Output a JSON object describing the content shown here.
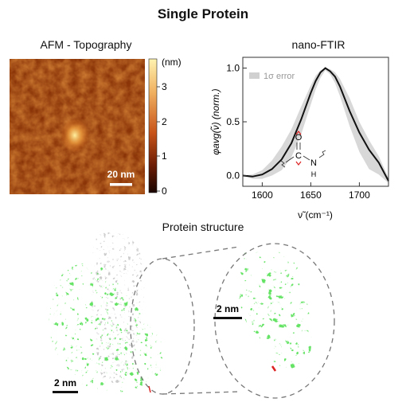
{
  "title": "Single Protein",
  "afm": {
    "title": "AFM - Topography",
    "scalebar": "20 nm",
    "colorbar_unit": "(nm)",
    "colorbar_ticks": [
      "3",
      "2",
      "1",
      "0"
    ]
  },
  "ftir": {
    "title": "nano-FTIR",
    "legend": "1σ error",
    "ylabel": "φavg(ν̃) (norm.)",
    "xlabel": "ν̃ (cm⁻¹)",
    "amide_labels": {
      "O": "O",
      "C": "C",
      "N": "N",
      "H": "H"
    }
  },
  "structure": {
    "title": "Protein structure",
    "scalebar_left": "2 nm",
    "scalebar_right": "2 nm"
  },
  "colors": {
    "colorbar_top": "#fff3b0",
    "colorbar_mid": "#c8541a",
    "colorbar_bottom": "#1a0500",
    "protein_green": "#22c422",
    "protein_gray": "#b5b5b5",
    "error_band": "#d8d8d8"
  },
  "chart_data": {
    "type": "line",
    "xlim": [
      1580,
      1730
    ],
    "ylim": [
      -0.1,
      1.1
    ],
    "xticks": [
      "1600",
      "1650",
      "1700"
    ],
    "yticks": [
      "0.0",
      "0.5",
      "1.0"
    ],
    "x": [
      1580,
      1590,
      1600,
      1610,
      1620,
      1630,
      1640,
      1650,
      1655,
      1660,
      1665,
      1670,
      1675,
      1680,
      1690,
      1700,
      1710,
      1720,
      1730
    ],
    "y": [
      0.0,
      -0.01,
      0.01,
      0.06,
      0.15,
      0.3,
      0.52,
      0.77,
      0.88,
      0.96,
      1.0,
      0.97,
      0.92,
      0.83,
      0.6,
      0.4,
      0.24,
      0.12,
      -0.05
    ],
    "upper": [
      0.0,
      0.01,
      0.05,
      0.14,
      0.27,
      0.43,
      0.64,
      0.84,
      0.93,
      0.98,
      1.0,
      0.99,
      0.96,
      0.9,
      0.72,
      0.5,
      0.33,
      0.18,
      -0.02
    ],
    "lower": [
      0.0,
      -0.03,
      -0.03,
      0.0,
      0.05,
      0.17,
      0.38,
      0.66,
      0.8,
      0.91,
      0.98,
      0.94,
      0.86,
      0.74,
      0.46,
      0.22,
      0.06,
      0.01,
      -0.07
    ]
  }
}
